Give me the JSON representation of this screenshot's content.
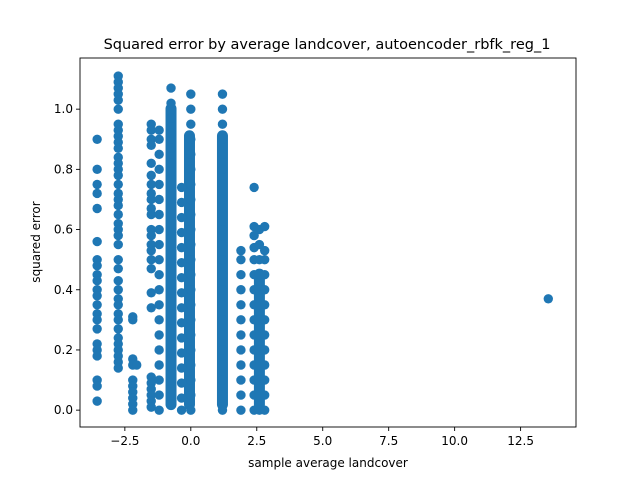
{
  "chart_data": {
    "type": "scatter",
    "title": "Squared error by average landcover, autoencoder_rbfk_reg_1",
    "xlabel": "sample average landcover",
    "ylabel": "squared error",
    "xlim": [
      -4.2,
      14.6
    ],
    "ylim": [
      -0.056,
      1.17
    ],
    "xticks": [
      -2.5,
      0.0,
      2.5,
      5.0,
      7.5,
      10.0,
      12.5
    ],
    "xtick_labels": [
      "−2.5",
      "0.0",
      "2.5",
      "5.0",
      "7.5",
      "10.0",
      "12.5"
    ],
    "yticks": [
      0.0,
      0.2,
      0.4,
      0.6,
      0.8,
      1.0
    ],
    "ytick_labels": [
      "0.0",
      "0.2",
      "0.4",
      "0.6",
      "0.8",
      "1.0"
    ],
    "grid": false,
    "marker_color": "#1f77b4",
    "series": [
      {
        "points": [
          [
            -3.55,
            0.9
          ],
          [
            -3.55,
            0.8
          ],
          [
            -3.55,
            0.75
          ],
          [
            -3.55,
            0.72
          ],
          [
            -3.55,
            0.67
          ],
          [
            -3.55,
            0.56
          ],
          [
            -3.55,
            0.5
          ],
          [
            -3.55,
            0.48
          ],
          [
            -3.55,
            0.45
          ],
          [
            -3.55,
            0.43
          ],
          [
            -3.55,
            0.4
          ],
          [
            -3.55,
            0.38
          ],
          [
            -3.55,
            0.35
          ],
          [
            -3.55,
            0.32
          ],
          [
            -3.55,
            0.3
          ],
          [
            -3.55,
            0.27
          ],
          [
            -3.55,
            0.22
          ],
          [
            -3.55,
            0.2
          ],
          [
            -3.55,
            0.18
          ],
          [
            -3.55,
            0.1
          ],
          [
            -3.55,
            0.08
          ],
          [
            -3.55,
            0.03
          ],
          [
            -2.75,
            1.11
          ],
          [
            -2.75,
            1.09
          ],
          [
            -2.75,
            1.07
          ],
          [
            -2.75,
            1.05
          ],
          [
            -2.75,
            1.03
          ],
          [
            -2.75,
            1.0
          ],
          [
            -2.75,
            0.95
          ],
          [
            -2.75,
            0.93
          ],
          [
            -2.75,
            0.91
          ],
          [
            -2.75,
            0.89
          ],
          [
            -2.75,
            0.87
          ],
          [
            -2.75,
            0.84
          ],
          [
            -2.75,
            0.82
          ],
          [
            -2.75,
            0.8
          ],
          [
            -2.75,
            0.78
          ],
          [
            -2.75,
            0.75
          ],
          [
            -2.75,
            0.72
          ],
          [
            -2.75,
            0.7
          ],
          [
            -2.75,
            0.68
          ],
          [
            -2.75,
            0.65
          ],
          [
            -2.75,
            0.62
          ],
          [
            -2.75,
            0.6
          ],
          [
            -2.75,
            0.58
          ],
          [
            -2.75,
            0.55
          ],
          [
            -2.75,
            0.5
          ],
          [
            -2.75,
            0.47
          ],
          [
            -2.75,
            0.43
          ],
          [
            -2.75,
            0.4
          ],
          [
            -2.75,
            0.37
          ],
          [
            -2.75,
            0.35
          ],
          [
            -2.75,
            0.32
          ],
          [
            -2.75,
            0.3
          ],
          [
            -2.75,
            0.27
          ],
          [
            -2.75,
            0.24
          ],
          [
            -2.75,
            0.22
          ],
          [
            -2.75,
            0.2
          ],
          [
            -2.75,
            0.18
          ],
          [
            -2.75,
            0.16
          ],
          [
            -2.75,
            0.14
          ],
          [
            -2.2,
            0.31
          ],
          [
            -2.2,
            0.3
          ],
          [
            -2.2,
            0.17
          ],
          [
            -2.2,
            0.15
          ],
          [
            -2.2,
            0.1
          ],
          [
            -2.2,
            0.08
          ],
          [
            -2.2,
            0.06
          ],
          [
            -2.2,
            0.04
          ],
          [
            -2.2,
            0.02
          ],
          [
            -2.2,
            0.0
          ],
          [
            -2.05,
            0.15
          ],
          [
            -1.5,
            0.95
          ],
          [
            -1.5,
            0.93
          ],
          [
            -1.5,
            0.9
          ],
          [
            -1.5,
            0.88
          ],
          [
            -1.5,
            0.82
          ],
          [
            -1.5,
            0.78
          ],
          [
            -1.5,
            0.75
          ],
          [
            -1.5,
            0.72
          ],
          [
            -1.5,
            0.7
          ],
          [
            -1.5,
            0.67
          ],
          [
            -1.5,
            0.65
          ],
          [
            -1.5,
            0.6
          ],
          [
            -1.5,
            0.58
          ],
          [
            -1.5,
            0.55
          ],
          [
            -1.5,
            0.53
          ],
          [
            -1.5,
            0.5
          ],
          [
            -1.5,
            0.47
          ],
          [
            -1.5,
            0.39
          ],
          [
            -1.5,
            0.34
          ],
          [
            -1.5,
            0.11
          ],
          [
            -1.5,
            0.09
          ],
          [
            -1.5,
            0.07
          ],
          [
            -1.5,
            0.05
          ],
          [
            -1.5,
            0.03
          ],
          [
            -1.5,
            0.01
          ],
          [
            -1.2,
            0.93
          ],
          [
            -1.2,
            0.9
          ],
          [
            -1.2,
            0.85
          ],
          [
            -1.2,
            0.8
          ],
          [
            -1.2,
            0.75
          ],
          [
            -1.2,
            0.7
          ],
          [
            -1.2,
            0.65
          ],
          [
            -1.2,
            0.6
          ],
          [
            -1.2,
            0.55
          ],
          [
            -1.2,
            0.5
          ],
          [
            -1.2,
            0.45
          ],
          [
            -1.2,
            0.4
          ],
          [
            -1.2,
            0.35
          ],
          [
            -1.2,
            0.3
          ],
          [
            -1.2,
            0.25
          ],
          [
            -1.2,
            0.2
          ],
          [
            -1.2,
            0.15
          ],
          [
            -1.2,
            0.1
          ],
          [
            -1.2,
            0.05
          ],
          [
            -1.2,
            0.0
          ],
          [
            -0.75,
            1.07
          ],
          [
            -0.75,
            1.02
          ],
          [
            -0.75,
            0.97
          ],
          [
            -0.75,
            0.92
          ],
          [
            -0.75,
            0.87
          ],
          [
            -0.75,
            0.82
          ],
          [
            -0.75,
            0.77
          ],
          [
            -0.75,
            0.72
          ],
          [
            -0.75,
            0.67
          ],
          [
            -0.75,
            0.62
          ],
          [
            -0.75,
            0.57
          ],
          [
            -0.75,
            0.52
          ],
          [
            -0.75,
            0.47
          ],
          [
            -0.75,
            0.42
          ],
          [
            -0.75,
            0.37
          ],
          [
            -0.75,
            0.32
          ],
          [
            -0.75,
            0.27
          ],
          [
            -0.75,
            0.22
          ],
          [
            -0.75,
            0.17
          ],
          [
            -0.75,
            0.12
          ],
          [
            -0.75,
            0.07
          ],
          [
            -0.75,
            0.02
          ],
          [
            -0.35,
            0.74
          ],
          [
            -0.35,
            0.69
          ],
          [
            -0.35,
            0.64
          ],
          [
            -0.35,
            0.59
          ],
          [
            -0.35,
            0.54
          ],
          [
            -0.35,
            0.49
          ],
          [
            -0.35,
            0.44
          ],
          [
            -0.35,
            0.39
          ],
          [
            -0.35,
            0.34
          ],
          [
            -0.35,
            0.29
          ],
          [
            -0.35,
            0.24
          ],
          [
            -0.35,
            0.19
          ],
          [
            -0.35,
            0.14
          ],
          [
            -0.35,
            0.09
          ],
          [
            -0.35,
            0.04
          ],
          [
            -0.35,
            0.0
          ],
          [
            0.0,
            1.05
          ],
          [
            0.0,
            1.0
          ],
          [
            0.0,
            0.95
          ],
          [
            0.0,
            0.9
          ],
          [
            0.0,
            0.85
          ],
          [
            0.0,
            0.8
          ],
          [
            0.0,
            0.75
          ],
          [
            0.0,
            0.7
          ],
          [
            0.0,
            0.65
          ],
          [
            0.0,
            0.6
          ],
          [
            0.0,
            0.55
          ],
          [
            0.0,
            0.5
          ],
          [
            0.0,
            0.45
          ],
          [
            0.0,
            0.4
          ],
          [
            0.0,
            0.35
          ],
          [
            0.0,
            0.3
          ],
          [
            0.0,
            0.25
          ],
          [
            0.0,
            0.2
          ],
          [
            0.0,
            0.15
          ],
          [
            0.0,
            0.1
          ],
          [
            0.0,
            0.05
          ],
          [
            0.0,
            0.0
          ],
          [
            1.2,
            1.05
          ],
          [
            1.2,
            1.0
          ],
          [
            1.2,
            0.95
          ],
          [
            1.2,
            0.9
          ],
          [
            1.2,
            0.85
          ],
          [
            1.2,
            0.8
          ],
          [
            1.2,
            0.75
          ],
          [
            1.2,
            0.7
          ],
          [
            1.2,
            0.65
          ],
          [
            1.2,
            0.6
          ],
          [
            1.2,
            0.55
          ],
          [
            1.2,
            0.5
          ],
          [
            1.2,
            0.45
          ],
          [
            1.2,
            0.4
          ],
          [
            1.2,
            0.35
          ],
          [
            1.2,
            0.3
          ],
          [
            1.2,
            0.25
          ],
          [
            1.2,
            0.2
          ],
          [
            1.2,
            0.15
          ],
          [
            1.2,
            0.1
          ],
          [
            1.2,
            0.05
          ],
          [
            1.2,
            0.0
          ],
          [
            1.9,
            0.53
          ],
          [
            1.9,
            0.5
          ],
          [
            1.9,
            0.45
          ],
          [
            1.9,
            0.4
          ],
          [
            1.9,
            0.35
          ],
          [
            1.9,
            0.3
          ],
          [
            1.9,
            0.25
          ],
          [
            1.9,
            0.2
          ],
          [
            1.9,
            0.15
          ],
          [
            1.9,
            0.1
          ],
          [
            1.9,
            0.05
          ],
          [
            1.9,
            0.0
          ],
          [
            2.4,
            0.74
          ],
          [
            2.4,
            0.61
          ],
          [
            2.4,
            0.58
          ],
          [
            2.4,
            0.54
          ],
          [
            2.4,
            0.5
          ],
          [
            2.4,
            0.45
          ],
          [
            2.4,
            0.4
          ],
          [
            2.4,
            0.35
          ],
          [
            2.4,
            0.3
          ],
          [
            2.4,
            0.25
          ],
          [
            2.4,
            0.2
          ],
          [
            2.4,
            0.15
          ],
          [
            2.4,
            0.1
          ],
          [
            2.4,
            0.05
          ],
          [
            2.4,
            0.0
          ],
          [
            2.6,
            0.6
          ],
          [
            2.6,
            0.55
          ],
          [
            2.6,
            0.5
          ],
          [
            2.6,
            0.45
          ],
          [
            2.6,
            0.4
          ],
          [
            2.6,
            0.35
          ],
          [
            2.6,
            0.3
          ],
          [
            2.6,
            0.25
          ],
          [
            2.6,
            0.2
          ],
          [
            2.6,
            0.15
          ],
          [
            2.6,
            0.1
          ],
          [
            2.6,
            0.05
          ],
          [
            2.6,
            0.0
          ],
          [
            2.8,
            0.61
          ],
          [
            2.8,
            0.53
          ],
          [
            2.8,
            0.5
          ],
          [
            2.8,
            0.45
          ],
          [
            2.8,
            0.4
          ],
          [
            2.8,
            0.35
          ],
          [
            2.8,
            0.3
          ],
          [
            2.8,
            0.25
          ],
          [
            2.8,
            0.2
          ],
          [
            2.8,
            0.15
          ],
          [
            2.8,
            0.1
          ],
          [
            2.8,
            0.05
          ],
          [
            2.8,
            0.0
          ],
          [
            13.55,
            0.37
          ]
        ],
        "dense_strips": [
          {
            "x": -0.75,
            "y_from": 0.0,
            "y_to": 1.02
          },
          {
            "x": -0.05,
            "y_from": 0.0,
            "y_to": 0.93
          },
          {
            "x": 1.2,
            "y_from": 0.0,
            "y_to": 0.93
          },
          {
            "x": 2.6,
            "y_from": 0.0,
            "y_to": 0.47
          }
        ]
      }
    ]
  }
}
